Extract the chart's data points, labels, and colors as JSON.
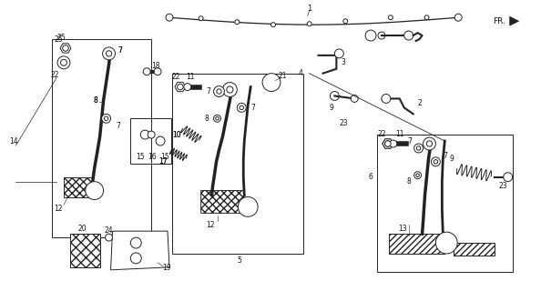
{
  "bg_color": "#ffffff",
  "line_color": "#222222",
  "text_color": "#111111",
  "fig_width": 5.94,
  "fig_height": 3.2,
  "dpi": 100
}
